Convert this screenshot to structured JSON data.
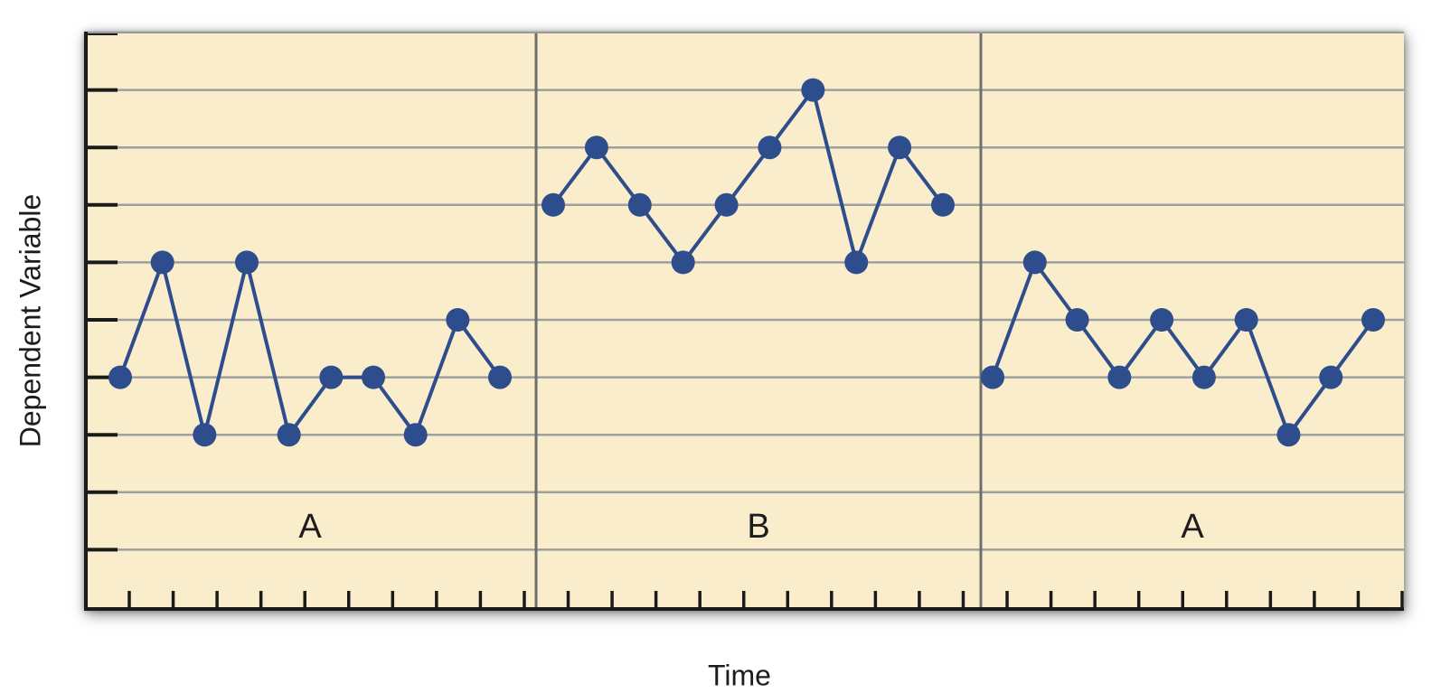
{
  "chart_data": {
    "type": "line",
    "design": "ABA reversal (single-subject) graph",
    "xlabel": "Time",
    "ylabel": "Dependent Variable",
    "ylim": [
      0,
      10
    ],
    "y_gridlines": [
      1,
      2,
      3,
      4,
      5,
      6,
      7,
      8,
      9
    ],
    "y_ticks": [
      1,
      2,
      3,
      4,
      5,
      6,
      7,
      8,
      9,
      10
    ],
    "x_ticks_count": 30,
    "grid": "horizontal",
    "legend": "none",
    "axis_value_labels": "none",
    "phases": [
      {
        "label": "A",
        "values": [
          4,
          6,
          3,
          6,
          3,
          4,
          4,
          3,
          5,
          4
        ]
      },
      {
        "label": "B",
        "values": [
          7,
          8,
          7,
          6,
          7,
          8,
          9,
          6,
          8,
          7
        ]
      },
      {
        "label": "A",
        "values": [
          4,
          6,
          5,
          4,
          5,
          4,
          5,
          3,
          4,
          5
        ]
      }
    ],
    "colors": {
      "plot_background": "#faedcb",
      "series": "#2e4d8c",
      "gridline": "#9f9f9f",
      "phase_divider": "#6e6e6e",
      "axis": "#1a1a1a",
      "label_text": "#1c1c1c",
      "page_background": "#ffffff"
    }
  }
}
